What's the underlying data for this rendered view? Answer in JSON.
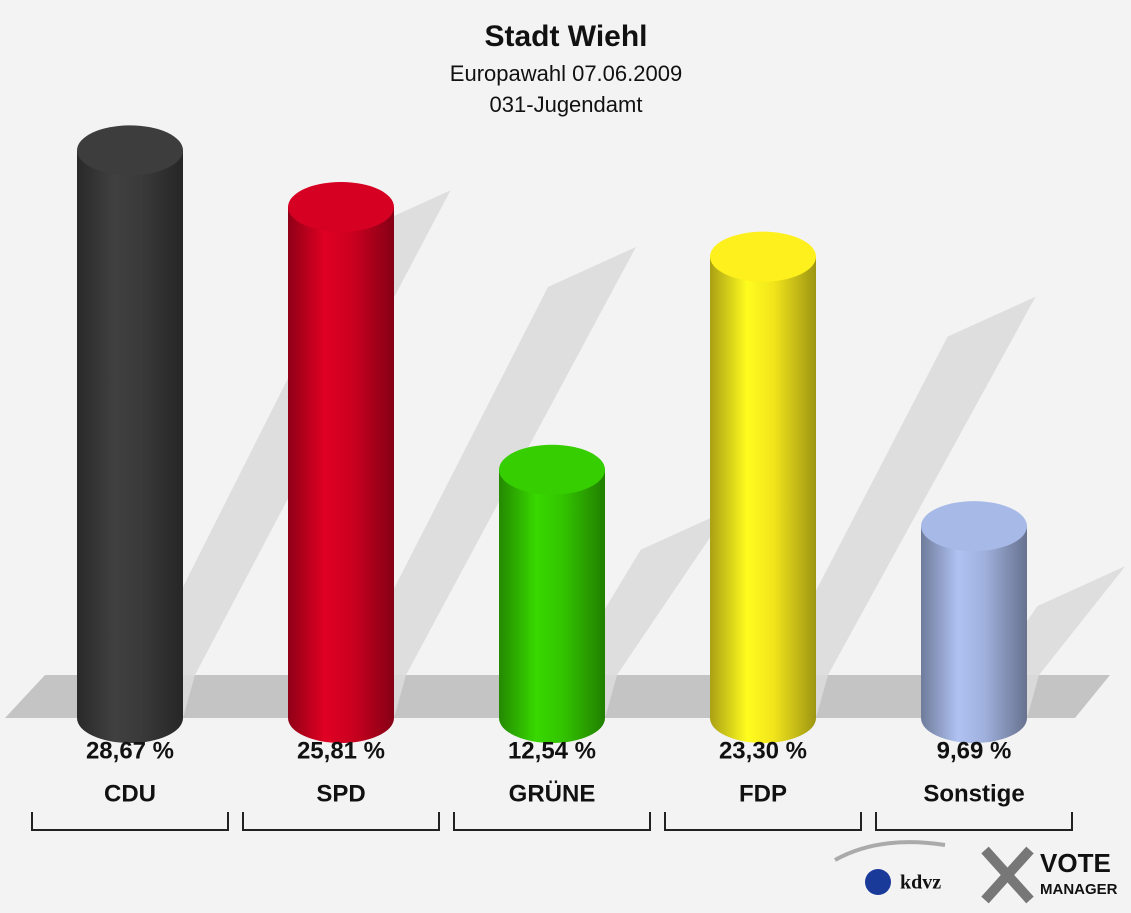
{
  "chart_data": {
    "type": "bar3d",
    "title": "Stadt Wiehl",
    "subtitle": [
      "Europawahl 07.06.2009",
      "031-Jugendamt"
    ],
    "categories": [
      "CDU",
      "SPD",
      "GRÜNE",
      "FDP",
      "Sonstige"
    ],
    "values": [
      28.67,
      25.81,
      12.54,
      23.3,
      9.69
    ],
    "value_labels": [
      "28,67 %",
      "25,81 %",
      "12,54 %",
      "23,30 %",
      "9,69 %"
    ],
    "colors": [
      "#3a3a3a",
      "#cc0020",
      "#33c400",
      "#f2e51c",
      "#9fb0dc"
    ]
  },
  "logo": [
    "kdvz",
    "VOTE",
    "MANAGER"
  ]
}
